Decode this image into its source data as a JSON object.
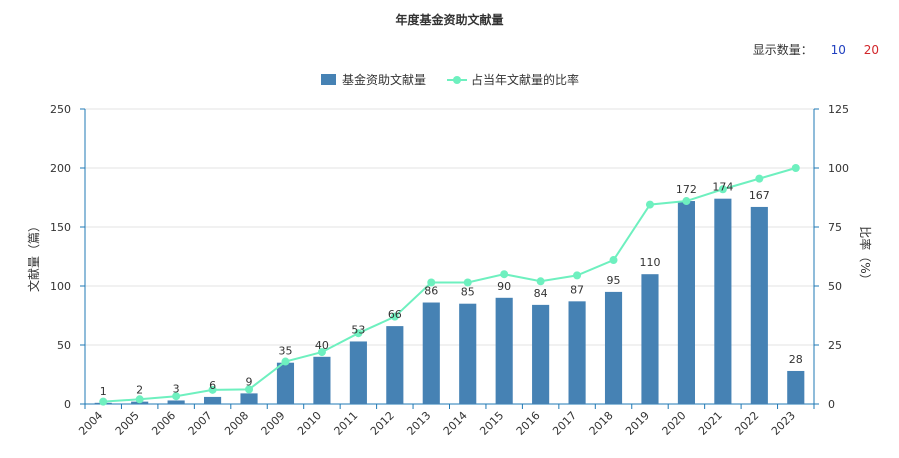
{
  "title": "年度基金资助文献量",
  "display": {
    "label": "显示数量：",
    "options": [
      "10",
      "20"
    ]
  },
  "chart_data": {
    "type": "bar",
    "categories": [
      "2004",
      "2005",
      "2006",
      "2007",
      "2008",
      "2009",
      "2010",
      "2011",
      "2012",
      "2013",
      "2014",
      "2015",
      "2016",
      "2017",
      "2018",
      "2019",
      "2020",
      "2021",
      "2022",
      "2023"
    ],
    "series": [
      {
        "name": "基金资助文献量",
        "type": "bar",
        "axis": "left",
        "color": "#4682b4",
        "values": [
          1,
          2,
          3,
          6,
          9,
          35,
          40,
          53,
          66,
          86,
          85,
          90,
          84,
          87,
          95,
          110,
          172,
          174,
          167,
          28
        ]
      },
      {
        "name": "占当年文献量的比率",
        "type": "line",
        "axis": "right",
        "color": "#6ef0bf",
        "values": [
          1,
          2,
          3.3,
          6,
          6.2,
          18,
          22,
          30,
          37,
          51.5,
          51.5,
          55,
          52,
          54.5,
          61,
          84.5,
          86,
          91,
          95.5,
          100
        ]
      }
    ],
    "ylabel_left": "文献量（篇）",
    "ylabel_right": "比率（%）",
    "ylim_left": [
      0,
      250
    ],
    "ylim_right": [
      0,
      125
    ],
    "yticks_left": [
      0,
      50,
      100,
      150,
      200,
      250
    ],
    "yticks_right": [
      0,
      25,
      50,
      75,
      100,
      125
    ],
    "grid": true,
    "legend": "top-center"
  }
}
